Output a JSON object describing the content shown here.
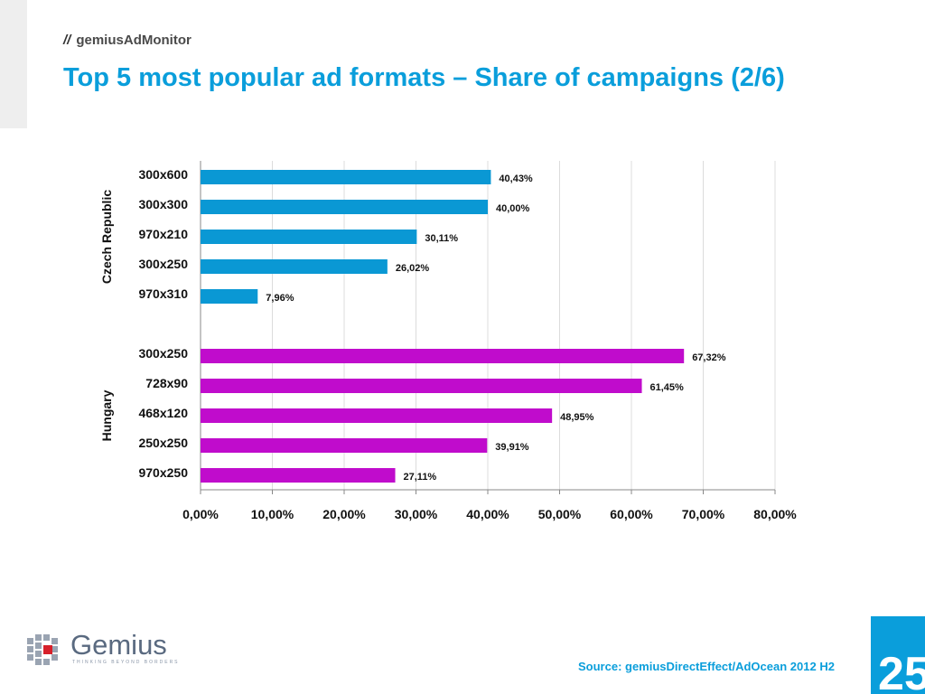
{
  "header": {
    "slashes": "//",
    "brand": "gemiusAdMonitor",
    "title": "Top 5 most popular ad formats – Share of campaigns (2/6)"
  },
  "footer": {
    "logo_name": "Gemius",
    "logo_tagline": "THINKING BEYOND BORDERS",
    "source": "Source: gemiusDirectEffect/AdOcean 2012 H2",
    "page_number": "25"
  },
  "chart_data": {
    "type": "bar",
    "orientation": "horizontal",
    "title": "",
    "xlabel": "",
    "ylabel": "",
    "xlim": [
      0,
      80
    ],
    "x_ticks": [
      "0,00%",
      "10,00%",
      "20,00%",
      "30,00%",
      "40,00%",
      "50,00%",
      "60,00%",
      "70,00%",
      "80,00%"
    ],
    "grid": "vertical",
    "groups": [
      {
        "name": "Czech Republic",
        "color": "#0a98d4",
        "categories": [
          "300x600",
          "300x300",
          "970x210",
          "300x250",
          "970x310"
        ],
        "values": [
          40.43,
          40.0,
          30.11,
          26.02,
          7.96
        ],
        "labels": [
          "40,43%",
          "40,00%",
          "30,11%",
          "26,02%",
          "7,96%"
        ]
      },
      {
        "name": "Hungary",
        "color": "#c00ccc",
        "categories": [
          "300x250",
          "728x90",
          "468x120",
          "250x250",
          "970x250"
        ],
        "values": [
          67.32,
          61.45,
          48.95,
          39.91,
          27.11
        ],
        "labels": [
          "67,32%",
          "61,45%",
          "48,95%",
          "39,91%",
          "27,11%"
        ]
      }
    ]
  }
}
